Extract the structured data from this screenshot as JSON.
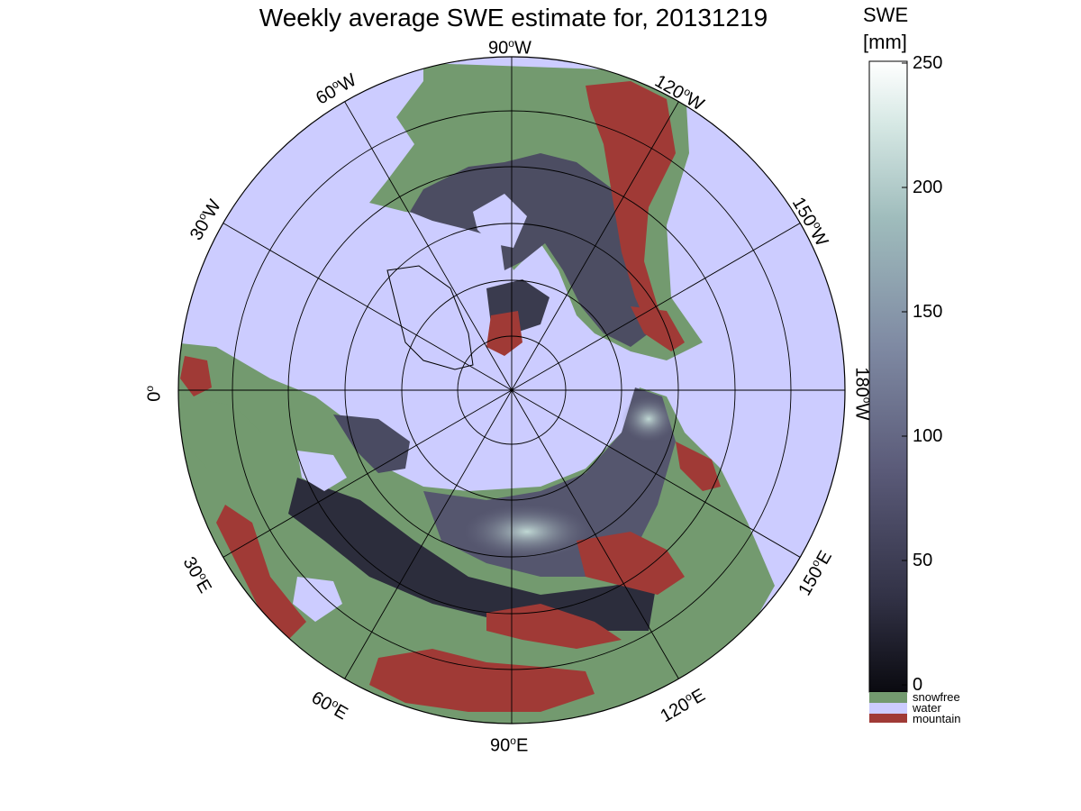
{
  "title": "Weekly average SWE estimate for, 20131219",
  "colorbar": {
    "label_line1": "SWE",
    "label_line2": "[mm]",
    "ticks": [
      "0",
      "50",
      "100",
      "150",
      "200",
      "250"
    ],
    "categories": [
      {
        "label": "snowfree",
        "color": "#739a6f"
      },
      {
        "label": "water",
        "color": "#ccccff"
      },
      {
        "label": "mountain",
        "color": "#a03a36"
      }
    ],
    "gradient": [
      "#0a0a10",
      "#323246",
      "#5a5a78",
      "#7f8aa3",
      "#9fbcbc",
      "#d6e8e4",
      "#ffffff"
    ]
  },
  "longitude_labels": {
    "w90": {
      "deg": "90",
      "dir": "W"
    },
    "w60": {
      "deg": "60",
      "dir": "W"
    },
    "w30": {
      "deg": "30",
      "dir": "W"
    },
    "zero": {
      "deg": "0",
      "dir": ""
    },
    "e30": {
      "deg": "30",
      "dir": "E"
    },
    "e60": {
      "deg": "60",
      "dir": "E"
    },
    "e90": {
      "deg": "90",
      "dir": "E"
    },
    "e120": {
      "deg": "120",
      "dir": "E"
    },
    "e150": {
      "deg": "150",
      "dir": "E"
    },
    "w180": {
      "deg": "180",
      "dir": "W"
    },
    "w150": {
      "deg": "150",
      "dir": "W"
    },
    "w120": {
      "deg": "120",
      "dir": "W"
    }
  },
  "colors": {
    "water": "#ccccff",
    "snowfree": "#739a6f",
    "mountain": "#a03a36",
    "snow_low": "#2a2a38",
    "snow_mid": "#6a6c84",
    "snow_high": "#b6ccca"
  }
}
